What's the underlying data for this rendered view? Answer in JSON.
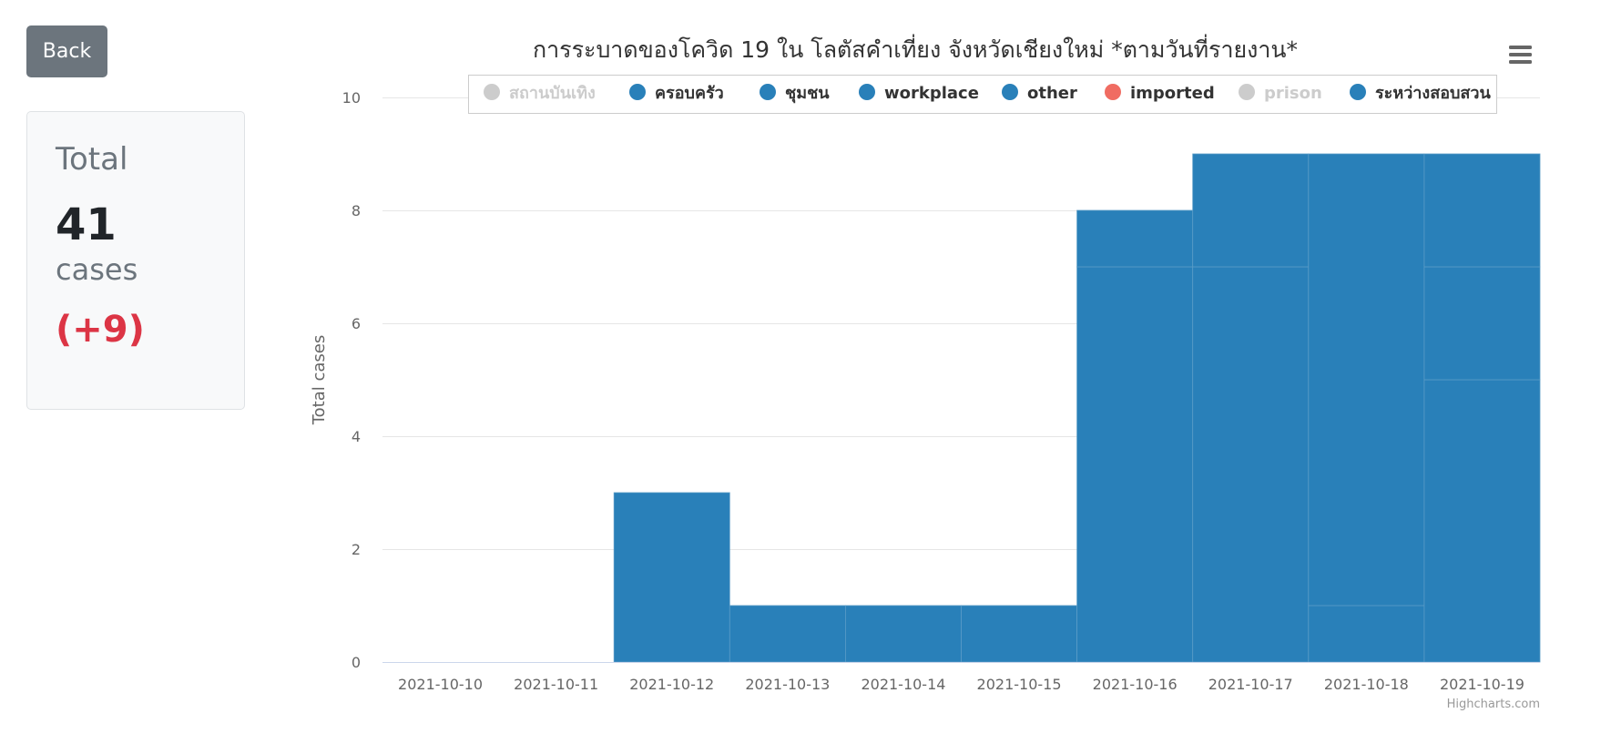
{
  "back_button": {
    "label": "Back"
  },
  "summary": {
    "label": "Total",
    "value": "41",
    "unit": "cases",
    "delta": "(+9)"
  },
  "menu": {
    "icon": "hamburger-menu-icon"
  },
  "credits": "Highcharts.com",
  "chart_data": {
    "type": "bar",
    "stacking": "normal",
    "title": "การระบาดของโควิด 19 ใน โลตัสคำเที่ยง จังหวัดเชียงใหม่ *ตามวันที่รายงาน*",
    "ylabel": "Total cases",
    "xlabel": "",
    "ylim": [
      0,
      10
    ],
    "yticks": [
      0,
      2,
      4,
      6,
      8,
      10
    ],
    "grid": true,
    "legend_position": "top",
    "categories": [
      "2021-10-10",
      "2021-10-11",
      "2021-10-12",
      "2021-10-13",
      "2021-10-14",
      "2021-10-15",
      "2021-10-16",
      "2021-10-17",
      "2021-10-18",
      "2021-10-19"
    ],
    "legend": [
      {
        "name": "สถานบันเทิง",
        "color": "#cccccc",
        "visible": false
      },
      {
        "name": "ครอบครัว",
        "color": "#2980b9",
        "visible": true
      },
      {
        "name": "ชุมชน",
        "color": "#2980b9",
        "visible": true
      },
      {
        "name": "workplace",
        "color": "#2980b9",
        "visible": true
      },
      {
        "name": "other",
        "color": "#2980b9",
        "visible": true
      },
      {
        "name": "imported",
        "color": "#f06c62",
        "visible": true
      },
      {
        "name": "prison",
        "color": "#cccccc",
        "visible": false
      },
      {
        "name": "ระหว่างสอบสวน",
        "color": "#2980b9",
        "visible": true
      }
    ],
    "totals": [
      0,
      0,
      3,
      1,
      1,
      1,
      8,
      9,
      9,
      9
    ],
    "segments": [
      [],
      [],
      [
        3
      ],
      [
        1
      ],
      [
        1
      ],
      [
        1
      ],
      [
        7,
        1
      ],
      [
        7,
        2
      ],
      [
        1,
        8
      ],
      [
        5,
        2,
        2
      ]
    ]
  }
}
